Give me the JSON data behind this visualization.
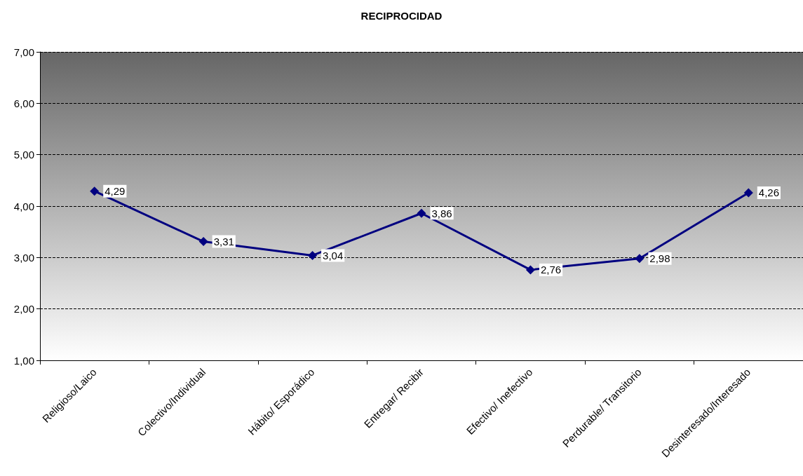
{
  "chart_data": {
    "type": "line",
    "title": "RECIPROCIDAD",
    "categories": [
      "Religioso/Laico",
      "Colectivo/Individual",
      "Hábito/ Esporádico",
      "Entregar/ Recibir",
      "Efectivo/ Inefectivo",
      "Perdurable/ Transitorio",
      "Desinteresado/Interesado"
    ],
    "values": [
      4.29,
      3.31,
      3.04,
      3.86,
      2.76,
      2.98,
      4.26
    ],
    "value_labels": [
      "4,29",
      "3,31",
      "3,04",
      "3,86",
      "2,76",
      "2,98",
      "4,26"
    ],
    "color": "#000080",
    "ylim": [
      1,
      7
    ],
    "yticks": [
      {
        "value": 1,
        "label": "1,00"
      },
      {
        "value": 2,
        "label": "2,00"
      },
      {
        "value": 3,
        "label": "3,00"
      },
      {
        "value": 4,
        "label": "4,00"
      },
      {
        "value": 5,
        "label": "5,00"
      },
      {
        "value": 6,
        "label": "6,00"
      },
      {
        "value": 7,
        "label": "7,00"
      }
    ],
    "grid": "y",
    "marker": "diamond",
    "line_style": "solid"
  }
}
